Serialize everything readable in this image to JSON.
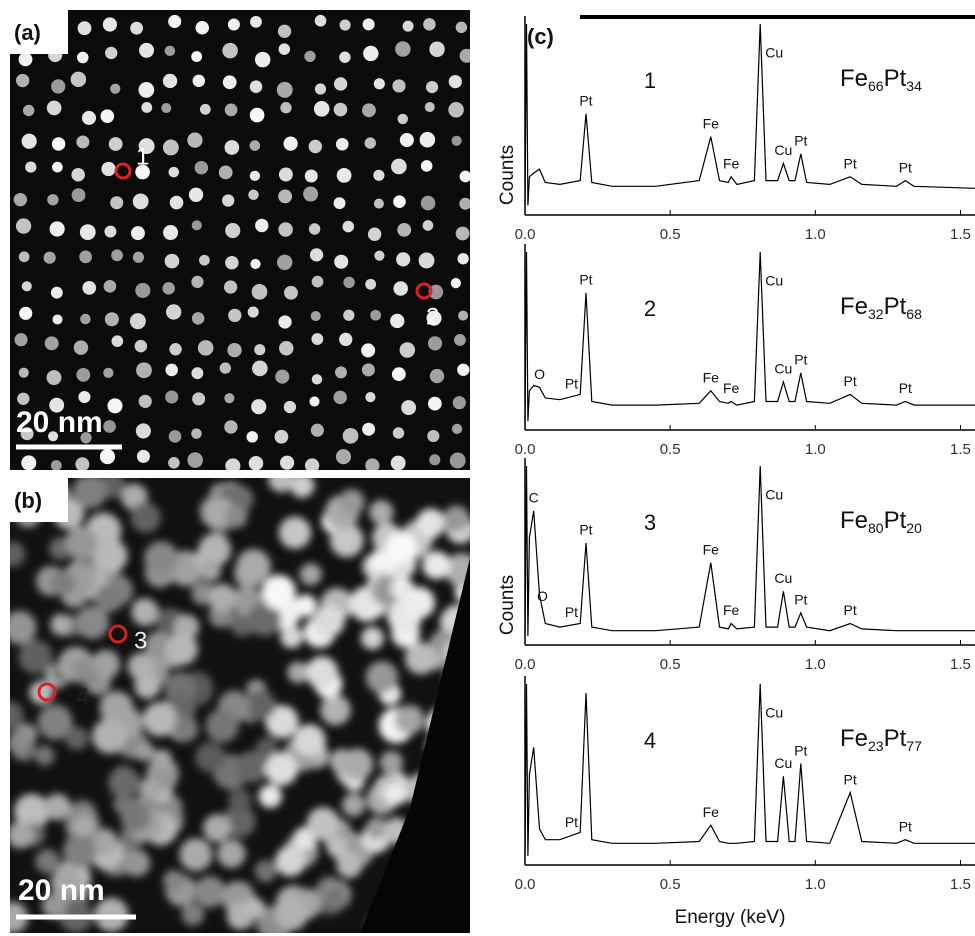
{
  "panels": {
    "a": {
      "label": "(a)",
      "scale_bar": "20 nm",
      "markers": [
        "1",
        "2"
      ]
    },
    "b": {
      "label": "(b)",
      "scale_bar": "20 nm",
      "markers": [
        "3",
        "4"
      ]
    },
    "c": {
      "label": "(c)"
    }
  },
  "chart_data": [
    {
      "type": "line",
      "number": "1",
      "composition": [
        "Fe",
        "66",
        "Pt",
        "34"
      ],
      "ylabel": "Counts",
      "x": [
        0,
        0.005,
        0.01,
        0.015,
        0.03,
        0.05,
        0.07,
        0.12,
        0.19,
        0.21,
        0.23,
        0.3,
        0.45,
        0.6,
        0.64,
        0.67,
        0.7,
        0.71,
        0.73,
        0.79,
        0.81,
        0.83,
        0.87,
        0.89,
        0.91,
        0.93,
        0.95,
        0.97,
        1.05,
        1.12,
        1.16,
        1.28,
        1.31,
        1.34,
        1.55
      ],
      "values": [
        5,
        100,
        5,
        20,
        22,
        24,
        17,
        16,
        18,
        53,
        17,
        15,
        15,
        18,
        41,
        18,
        17,
        20,
        16,
        18,
        100,
        18,
        18,
        27,
        18,
        18,
        32,
        17,
        16,
        20,
        16,
        15,
        18,
        15,
        14
      ],
      "xlim": [
        0,
        1.55
      ],
      "ylim": [
        0,
        100
      ],
      "xticks": [
        {
          "value": 0,
          "label": "0.0"
        },
        0.5,
        {
          "value": 1,
          "label": "1.0"
        },
        1.5
      ],
      "annotations": [
        {
          "text": "Pt",
          "x": 0.21
        },
        {
          "text": "Fe",
          "x": 0.64
        },
        {
          "text": "Fe",
          "x": 0.71
        },
        {
          "text": "Cu",
          "x": 0.81
        },
        {
          "text": "Cu",
          "x": 0.89
        },
        {
          "text": "Pt",
          "x": 0.95
        },
        {
          "text": "Pt",
          "x": 1.12
        },
        {
          "text": "Pt",
          "x": 1.31
        }
      ]
    },
    {
      "type": "line",
      "number": "2",
      "composition": [
        "Fe",
        "32",
        "Pt",
        "68"
      ],
      "x": [
        0,
        0.005,
        0.01,
        0.015,
        0.03,
        0.05,
        0.07,
        0.12,
        0.19,
        0.21,
        0.23,
        0.3,
        0.45,
        0.6,
        0.64,
        0.67,
        0.7,
        0.71,
        0.73,
        0.79,
        0.81,
        0.83,
        0.87,
        0.89,
        0.91,
        0.93,
        0.95,
        0.97,
        1.05,
        1.12,
        1.16,
        1.28,
        1.31,
        1.34,
        1.55
      ],
      "values": [
        5,
        100,
        5,
        22,
        25,
        24,
        18,
        17,
        20,
        77,
        16,
        14,
        14,
        15,
        22,
        16,
        15,
        16,
        14,
        16,
        100,
        16,
        16,
        27,
        16,
        16,
        32,
        16,
        15,
        20,
        15,
        14,
        16,
        14,
        14
      ],
      "xlim": [
        0,
        1.55
      ],
      "ylim": [
        0,
        100
      ],
      "xticks": [
        {
          "value": 0,
          "label": "0.0"
        },
        0.5,
        {
          "value": 1,
          "label": "1.0"
        },
        1.5
      ],
      "annotations": [
        {
          "text": "O",
          "x": 0.05
        },
        {
          "text": "Pt",
          "x": 0.16
        },
        {
          "text": "Pt",
          "x": 0.21
        },
        {
          "text": "Fe",
          "x": 0.64
        },
        {
          "text": "Fe",
          "x": 0.71
        },
        {
          "text": "Cu",
          "x": 0.81
        },
        {
          "text": "Cu",
          "x": 0.89
        },
        {
          "text": "Pt",
          "x": 0.95
        },
        {
          "text": "Pt",
          "x": 1.12
        },
        {
          "text": "Pt",
          "x": 1.31
        }
      ]
    },
    {
      "type": "line",
      "number": "3",
      "composition": [
        "Fe",
        "80",
        "Pt",
        "20"
      ],
      "ylabel": "Counts",
      "x": [
        0,
        0.005,
        0.01,
        0.015,
        0.03,
        0.05,
        0.07,
        0.12,
        0.19,
        0.21,
        0.23,
        0.3,
        0.45,
        0.6,
        0.64,
        0.67,
        0.7,
        0.71,
        0.73,
        0.79,
        0.81,
        0.83,
        0.87,
        0.89,
        0.91,
        0.93,
        0.95,
        0.97,
        1.05,
        1.12,
        1.16,
        1.28,
        1.31,
        1.34,
        1.55
      ],
      "values": [
        5,
        100,
        5,
        60,
        75,
        28,
        12,
        10,
        12,
        57,
        10,
        8,
        8,
        10,
        46,
        10,
        9,
        12,
        9,
        10,
        100,
        10,
        10,
        30,
        10,
        10,
        18,
        10,
        8,
        12,
        9,
        8,
        8,
        8,
        8
      ],
      "xlim": [
        0,
        1.55
      ],
      "ylim": [
        0,
        100
      ],
      "xticks": [
        {
          "value": 0,
          "label": "0.0"
        },
        0.5,
        {
          "value": 1,
          "label": "1.0"
        },
        1.5
      ],
      "annotations": [
        {
          "text": "C",
          "x": 0.03
        },
        {
          "text": "O",
          "x": 0.06
        },
        {
          "text": "Pt",
          "x": 0.16
        },
        {
          "text": "Pt",
          "x": 0.21
        },
        {
          "text": "Fe",
          "x": 0.64
        },
        {
          "text": "Fe",
          "x": 0.71
        },
        {
          "text": "Cu",
          "x": 0.81
        },
        {
          "text": "Cu",
          "x": 0.89
        },
        {
          "text": "Pt",
          "x": 0.95
        },
        {
          "text": "Pt",
          "x": 1.12
        }
      ]
    },
    {
      "type": "line",
      "number": "4",
      "composition": [
        "Fe",
        "23",
        "Pt",
        "77"
      ],
      "xlabel": "Energy (keV)",
      "x": [
        0,
        0.005,
        0.01,
        0.015,
        0.03,
        0.05,
        0.07,
        0.12,
        0.19,
        0.21,
        0.23,
        0.3,
        0.45,
        0.6,
        0.64,
        0.67,
        0.7,
        0.71,
        0.73,
        0.79,
        0.81,
        0.83,
        0.87,
        0.89,
        0.91,
        0.93,
        0.95,
        0.97,
        1.05,
        1.12,
        1.16,
        1.28,
        1.31,
        1.34,
        1.55
      ],
      "values": [
        5,
        100,
        5,
        50,
        65,
        20,
        14,
        14,
        18,
        95,
        14,
        12,
        12,
        13,
        22,
        13,
        12,
        12,
        12,
        13,
        100,
        13,
        13,
        49,
        13,
        13,
        56,
        13,
        12,
        40,
        13,
        12,
        14,
        12,
        12
      ],
      "xlim": [
        0,
        1.55
      ],
      "ylim": [
        0,
        100
      ],
      "xticks": [
        {
          "value": 0,
          "label": "0.0"
        },
        0.5,
        {
          "value": 1,
          "label": "1.0"
        },
        1.5
      ],
      "annotations": [
        {
          "text": "Pt",
          "x": 0.16
        },
        {
          "text": "Fe",
          "x": 0.64
        },
        {
          "text": "Cu",
          "x": 0.81
        },
        {
          "text": "Cu",
          "x": 0.89
        },
        {
          "text": "Pt",
          "x": 0.95
        },
        {
          "text": "Pt",
          "x": 1.12
        },
        {
          "text": "Pt",
          "x": 1.31
        }
      ]
    }
  ]
}
